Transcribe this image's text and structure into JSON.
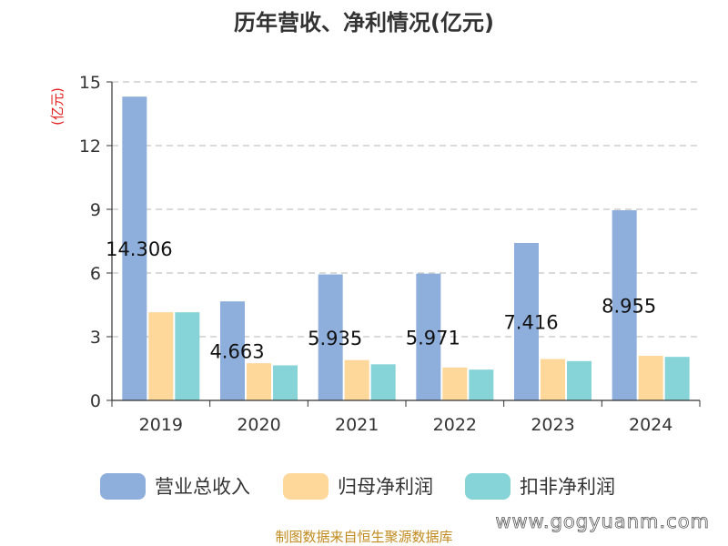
{
  "chart_data": {
    "type": "bar",
    "title": "历年营收、净利情况(亿元)",
    "ylabel": "(亿元)",
    "xlabel": "",
    "categories": [
      "2019",
      "2020",
      "2021",
      "2022",
      "2023",
      "2024"
    ],
    "series": [
      {
        "name": "营业总收入",
        "values": [
          14.306,
          4.663,
          5.935,
          5.971,
          7.416,
          8.955
        ],
        "color": "#8eaedb"
      },
      {
        "name": "归母净利润",
        "values": [
          4.15,
          1.75,
          1.9,
          1.55,
          1.95,
          2.1
        ],
        "color": "#fdd89a"
      },
      {
        "name": "扣非净利润",
        "values": [
          4.15,
          1.65,
          1.7,
          1.45,
          1.85,
          2.05
        ],
        "color": "#86d4d8"
      }
    ],
    "data_labels": [
      "14.306",
      "4.663",
      "5.935",
      "5.971",
      "7.416",
      "8.955"
    ],
    "ylim": [
      0,
      15
    ],
    "yticks": [
      0,
      3,
      6,
      9,
      12,
      15
    ],
    "grid": true,
    "legend_position": "bottom"
  },
  "footer": {
    "source": "制图数据来自恒生聚源数据库",
    "watermark": "www.gogyuanm.com"
  }
}
